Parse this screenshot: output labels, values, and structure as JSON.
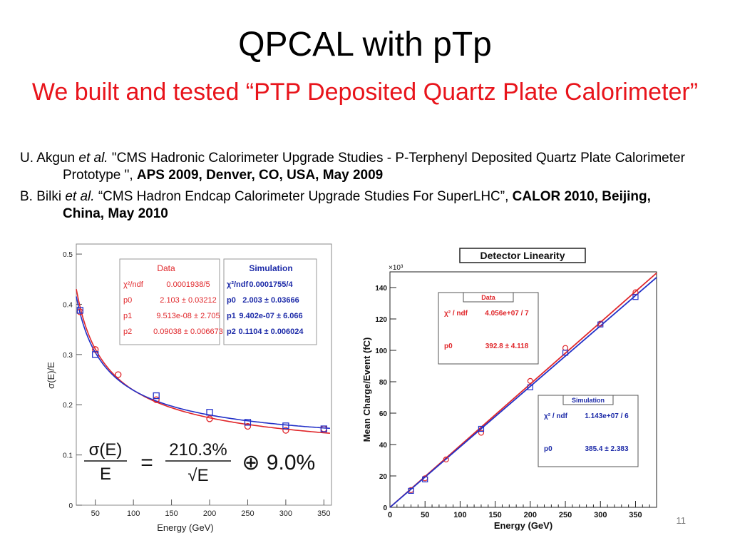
{
  "slide": {
    "title": "QPCAL with pTp",
    "subtitle": "We built and tested “PTP Deposited Quartz Plate Calorimeter”",
    "page_number": "11",
    "refs": [
      {
        "author": "U. Akgun ",
        "etal": "et al.",
        "text": " \"CMS Hadronic Calorimeter Upgrade Studies - P-Terphenyl Deposited Quartz Plate Calorimeter Prototype \", ",
        "venue": "APS 2009, Denver, CO, USA, May 2009"
      },
      {
        "author": "B. Bilki ",
        "etal": "et al.",
        "text": " “CMS Hadron Endcap Calorimeter Upgrade Studies For SuperLHC”, ",
        "venue": "CALOR 2010, Beijing, China, May 2010"
      }
    ]
  },
  "colors": {
    "data": "#e0262a",
    "sim": "#2230c8",
    "sim_text": "#1c2aa8"
  },
  "chart_data": [
    {
      "type": "scatter",
      "xlabel": "Energy (GeV)",
      "ylabel": "σ(E)/E",
      "xlim": [
        25,
        360
      ],
      "ylim": [
        0,
        0.52
      ],
      "xticks": [
        "50",
        "100",
        "150",
        "200",
        "250",
        "300",
        "350"
      ],
      "yticks": [
        "0",
        "0.1",
        "0.2",
        "0.3",
        "0.4",
        "0.5"
      ],
      "formula": {
        "lhs_num": "σ(E)",
        "lhs_den": "E",
        "eq": "=",
        "rhs_num": "210.3%",
        "rhs_den": "√E",
        "op": "⊕",
        "const": "9.0%"
      },
      "series": [
        {
          "name": "Data",
          "x": [
            30,
            50,
            80,
            130,
            200,
            250,
            300,
            350
          ],
          "y": [
            0.385,
            0.31,
            0.26,
            0.21,
            0.172,
            0.157,
            0.149,
            0.152
          ]
        },
        {
          "name": "Simulation",
          "x": [
            30,
            50,
            130,
            200,
            250,
            300,
            350
          ],
          "y": [
            0.388,
            0.3,
            0.218,
            0.185,
            0.165,
            0.158,
            0.152
          ]
        }
      ],
      "stats": [
        {
          "name": "Data",
          "rows": [
            [
              "χ²/ndf",
              "0.0001938/5"
            ],
            [
              "p0",
              "2.103 ± 0.03212"
            ],
            [
              "p1",
              "9.513e-08 ± 2.705"
            ],
            [
              "p2",
              "0.09038 ± 0.006673"
            ]
          ]
        },
        {
          "name": "Simulation",
          "rows": [
            [
              "χ²/ndf",
              "0.0001755/4"
            ],
            [
              "p0",
              "2.003 ± 0.03666"
            ],
            [
              "p1",
              "9.402e-07 ± 6.066"
            ],
            [
              "p2",
              "0.1104 ± 0.006024"
            ]
          ]
        }
      ]
    },
    {
      "type": "scatter",
      "title": "Detector Linearity",
      "xlabel": "Energy (GeV)",
      "ylabel": "Mean Charge/Event (fC)",
      "exponent": "×10³",
      "xlim": [
        0,
        380
      ],
      "ylim": [
        0,
        150
      ],
      "xticks": [
        "0",
        "50",
        "100",
        "150",
        "200",
        "250",
        "300",
        "350"
      ],
      "yticks": [
        "0",
        "20",
        "40",
        "60",
        "80",
        "100",
        "120",
        "140"
      ],
      "series": [
        {
          "name": "Data",
          "x": [
            30,
            50,
            80,
            130,
            200,
            250,
            300,
            350
          ],
          "y": [
            11,
            18.5,
            30.5,
            47.5,
            80.5,
            101.5,
            117,
            137
          ]
        },
        {
          "name": "Simulation",
          "x": [
            30,
            50,
            130,
            200,
            250,
            300,
            350
          ],
          "y": [
            10.5,
            17.8,
            50,
            76.5,
            98.5,
            116.5,
            134
          ]
        }
      ],
      "fits": [
        {
          "series": "Data",
          "slope": 392.8
        },
        {
          "series": "Simulation",
          "slope": 385.4
        }
      ],
      "stats": [
        {
          "name": "Data",
          "rows": [
            [
              "χ² / ndf",
              "4.056e+07 / 7"
            ],
            [
              "p0",
              "392.8 ± 4.118"
            ]
          ]
        },
        {
          "name": "Simulation",
          "rows": [
            [
              "χ² / ndf",
              "1.143e+07 / 6"
            ],
            [
              "p0",
              "385.4 ± 2.383"
            ]
          ]
        }
      ]
    }
  ]
}
